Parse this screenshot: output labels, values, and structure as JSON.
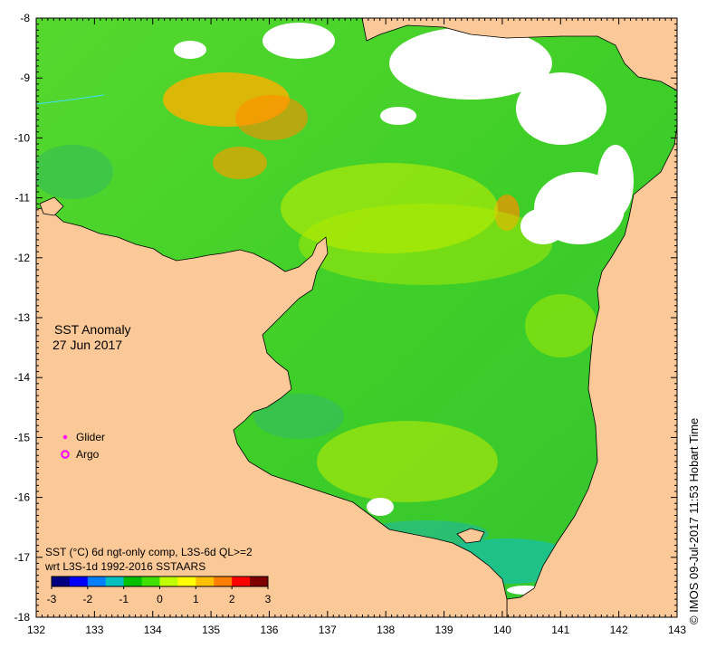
{
  "map": {
    "title_line1": "SST Anomaly",
    "title_line2": "27 Jun 2017",
    "legend": [
      {
        "label": "Glider",
        "color": "#ff00ff",
        "marker": "dot"
      },
      {
        "label": "Argo",
        "color": "#ff00ff",
        "marker": "ring"
      }
    ],
    "caption_line1": "SST (°C) 6d ngt-only comp, L3S-6d QL>=2",
    "caption_line2": "wrt L3S-1d 1992-2016 SSTAARS",
    "colorbar": {
      "ticks": [
        "-3",
        "-2",
        "-1",
        "0",
        "1",
        "2",
        "3"
      ],
      "colors": [
        "#000080",
        "#0000ff",
        "#0080ff",
        "#00c0c0",
        "#00c000",
        "#40e000",
        "#c0ff00",
        "#ffff00",
        "#ffc000",
        "#ff8000",
        "#ff0000",
        "#800000"
      ]
    },
    "x_axis": {
      "ticks": [
        "132",
        "133",
        "134",
        "135",
        "136",
        "137",
        "138",
        "139",
        "140",
        "141",
        "142",
        "143"
      ]
    },
    "y_axis": {
      "ticks": [
        "-8",
        "-9",
        "-10",
        "-11",
        "-12",
        "-13",
        "-14",
        "-15",
        "-16",
        "-17",
        "-18"
      ]
    },
    "copyright": "© IMOS 09-Jul-2017 11:53 Hobart Time",
    "colors": {
      "land": "#fbc898",
      "sea_green": "#3fcf28",
      "no_data": "#ffffff"
    }
  }
}
